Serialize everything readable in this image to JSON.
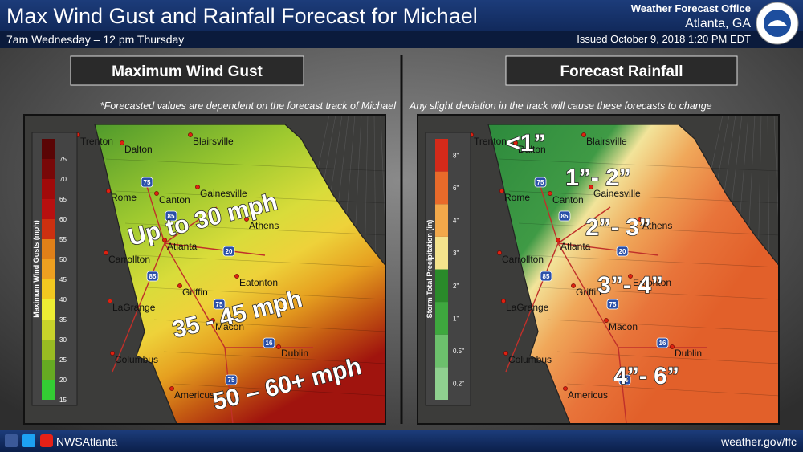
{
  "header": {
    "title": "Max Wind Gust and Rainfall Forecast for Michael",
    "subtitle": "7am Wednesday – 12 pm Thursday",
    "office": "Weather Forecast Office",
    "location": "Atlanta, GA",
    "issued": "Issued October 9, 2018 1:20 PM EDT"
  },
  "cities": [
    "Trenton",
    "Dalton",
    "Blairsville",
    "Rome",
    "Canton",
    "Gainesville",
    "Athens",
    "Carrollton",
    "Atlanta",
    "Griffin",
    "Eatonton",
    "LaGrange",
    "Macon",
    "Dublin",
    "Columbus",
    "Americus"
  ],
  "highways": [
    "75",
    "85",
    "20",
    "85",
    "75",
    "16",
    "75"
  ],
  "wind_panel": {
    "title": "Maximum Wind Gust",
    "note": "*Forecasted values are dependent on the forecast track of Michael",
    "legend_title": "Maximum Wind Gusts (mph)",
    "legend_ticks": [
      "15",
      "20",
      "25",
      "30",
      "35",
      "40",
      "45",
      "50",
      "55",
      "60",
      "65",
      "70",
      "75"
    ],
    "zones": [
      "Up to 30 mph",
      "35 - 45 mph",
      "50 – 60+ mph"
    ]
  },
  "rain_panel": {
    "title": "Forecast Rainfall",
    "note": "Any slight deviation in the track will cause these forecasts to change",
    "legend_title": "Storm Total Precipitation (in)",
    "legend_ticks": [
      "0.2\"",
      "0.5\"",
      "1\"",
      "2\"",
      "3\"",
      "4\"",
      "6\"",
      "8\""
    ],
    "zones": [
      "<1”",
      "1”- 2”",
      "2”- 3”",
      "3”- 4”",
      "4”- 6”"
    ]
  },
  "footer": {
    "social": "NWSAtlanta",
    "url": "weather.gov/ffc"
  }
}
